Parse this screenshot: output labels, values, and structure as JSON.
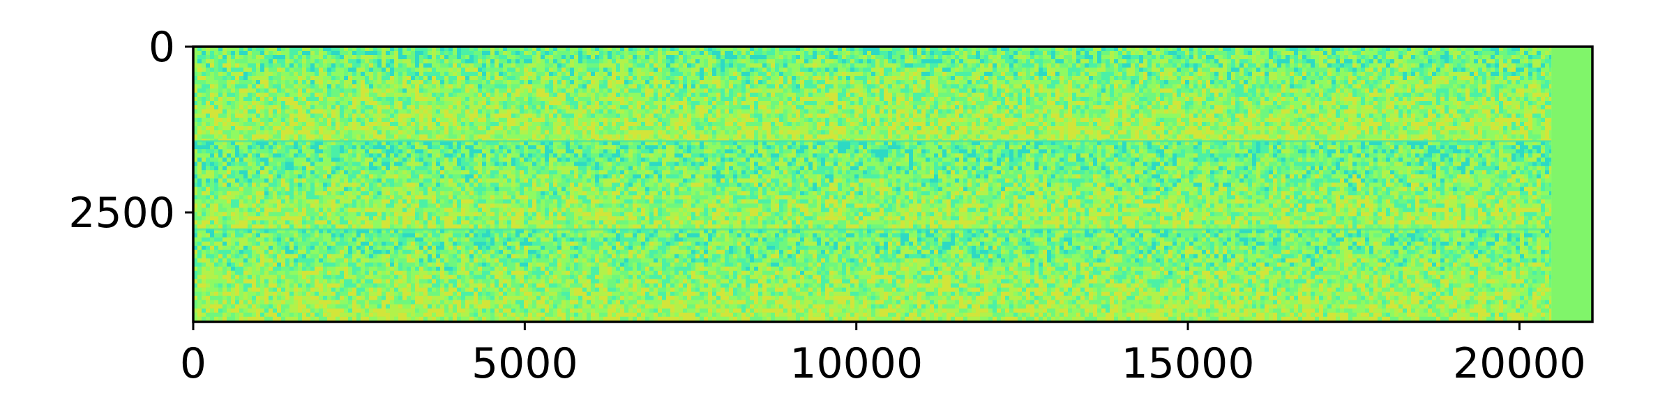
{
  "chart_data": {
    "type": "heatmap",
    "title": "",
    "xlabel": "",
    "ylabel": "",
    "xlim": [
      0,
      21100
    ],
    "ylim": [
      4150,
      0
    ],
    "x_ticks": [
      {
        "value": 0,
        "label": "0"
      },
      {
        "value": 5000,
        "label": "5000"
      },
      {
        "value": 10000,
        "label": "10000"
      },
      {
        "value": 15000,
        "label": "15000"
      },
      {
        "value": 20000,
        "label": "20000"
      }
    ],
    "y_ticks": [
      {
        "value": 0,
        "label": "0"
      },
      {
        "value": 2500,
        "label": "2500"
      }
    ],
    "grid": false,
    "colormap": "turbo",
    "data_extent_x": [
      0,
      20480
    ],
    "bands": [
      {
        "y_start": 0,
        "y_end": 1420
      },
      {
        "y_start": 1420,
        "y_end": 2750
      },
      {
        "y_start": 2750,
        "y_end": 4150
      }
    ],
    "fill_color": "#80f56a",
    "palette": [
      "#2dd9c4",
      "#4bf0a6",
      "#6ef77e",
      "#8ffa62",
      "#b2f24a",
      "#d2e53a"
    ]
  }
}
